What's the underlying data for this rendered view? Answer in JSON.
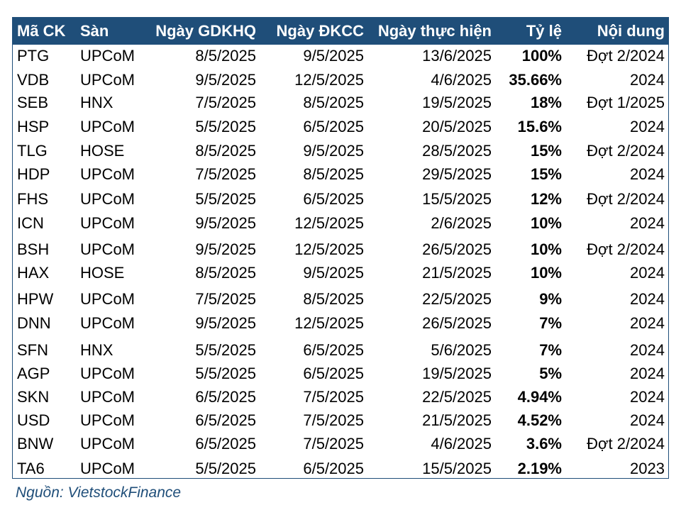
{
  "table": {
    "headers": [
      "Mã CK",
      "Sàn",
      "Ngày GDKHQ",
      "Ngày ĐKCC",
      "Ngày thực hiện",
      "Tỷ lệ",
      "Nội dung"
    ],
    "rows": [
      [
        "PTG",
        "UPCoM",
        "8/5/2025",
        "9/5/2025",
        "13/6/2025",
        "100%",
        "Đợt 2/2024"
      ],
      [
        "VDB",
        "UPCoM",
        "9/5/2025",
        "12/5/2025",
        "4/6/2025",
        "35.66%",
        "2024"
      ],
      [
        "SEB",
        "HNX",
        "7/5/2025",
        "8/5/2025",
        "19/5/2025",
        "18%",
        "Đợt 1/2025"
      ],
      [
        "HSP",
        "UPCoM",
        "5/5/2025",
        "6/5/2025",
        "20/5/2025",
        "15.6%",
        "2024"
      ],
      [
        "TLG",
        "HOSE",
        "8/5/2025",
        "9/5/2025",
        "28/5/2025",
        "15%",
        "Đợt 2/2024"
      ],
      [
        "HDP",
        "UPCoM",
        "7/5/2025",
        "8/5/2025",
        "29/5/2025",
        "15%",
        "2024"
      ],
      [
        "FHS",
        "UPCoM",
        "5/5/2025",
        "6/5/2025",
        "15/5/2025",
        "12%",
        "Đợt 2/2024"
      ],
      [
        "ICN",
        "UPCoM",
        "9/5/2025",
        "12/5/2025",
        "2/6/2025",
        "10%",
        "2024"
      ],
      [
        "BSH",
        "UPCoM",
        "9/5/2025",
        "12/5/2025",
        "26/5/2025",
        "10%",
        "Đợt 2/2024"
      ],
      [
        "HAX",
        "HOSE",
        "8/5/2025",
        "9/5/2025",
        "21/5/2025",
        "10%",
        "2024"
      ],
      [
        "HPW",
        "UPCoM",
        "7/5/2025",
        "8/5/2025",
        "22/5/2025",
        "9%",
        "2024"
      ],
      [
        "DNN",
        "UPCoM",
        "9/5/2025",
        "12/5/2025",
        "26/5/2025",
        "7%",
        "2024"
      ],
      [
        "SFN",
        "HNX",
        "5/5/2025",
        "6/5/2025",
        "5/6/2025",
        "7%",
        "2024"
      ],
      [
        "AGP",
        "UPCoM",
        "5/5/2025",
        "6/5/2025",
        "19/5/2025",
        "5%",
        "2024"
      ],
      [
        "SKN",
        "UPCoM",
        "6/5/2025",
        "7/5/2025",
        "22/5/2025",
        "4.94%",
        "2024"
      ],
      [
        "USD",
        "UPCoM",
        "6/5/2025",
        "7/5/2025",
        "21/5/2025",
        "4.52%",
        "2024"
      ],
      [
        "BNW",
        "UPCoM",
        "6/5/2025",
        "7/5/2025",
        "4/6/2025",
        "3.6%",
        "Đợt 2/2024"
      ],
      [
        "TA6",
        "UPCoM",
        "5/5/2025",
        "6/5/2025",
        "15/5/2025",
        "2.19%",
        "2023"
      ]
    ]
  },
  "source": "Nguồn: VietstockFinance",
  "colors": {
    "header_bg": "#1f4e79",
    "header_text": "#ffffff",
    "source_text": "#1f4e79"
  }
}
